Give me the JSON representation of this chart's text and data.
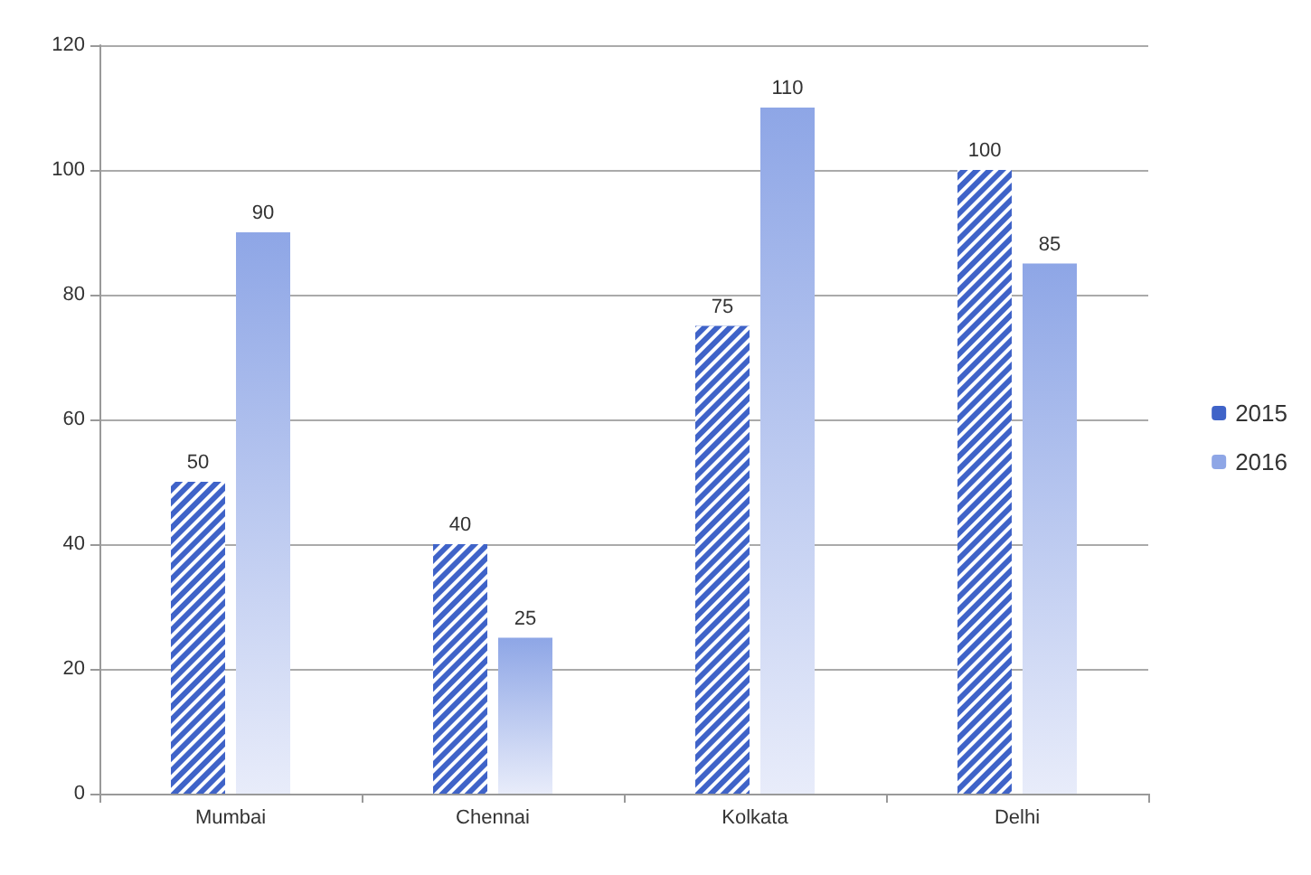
{
  "chart_data": {
    "type": "bar",
    "categories": [
      "Mumbai",
      "Chennai",
      "Kolkata",
      "Delhi"
    ],
    "series": [
      {
        "name": "2015",
        "color": "#3f63c8",
        "values": [
          50,
          40,
          75,
          100
        ]
      },
      {
        "name": "2016",
        "color": "#8ea6e6",
        "values": [
          90,
          25,
          110,
          85
        ]
      }
    ],
    "ylim": [
      0,
      120
    ],
    "yticks": [
      0,
      20,
      40,
      60,
      80,
      100,
      120
    ],
    "grid": "y",
    "legend": "right",
    "data_labels": true
  }
}
